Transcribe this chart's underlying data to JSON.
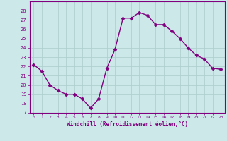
{
  "x": [
    0,
    1,
    2,
    3,
    4,
    5,
    6,
    7,
    8,
    9,
    10,
    11,
    12,
    13,
    14,
    15,
    16,
    17,
    18,
    19,
    20,
    21,
    22,
    23
  ],
  "y": [
    22.2,
    21.5,
    20.0,
    19.4,
    19.0,
    19.0,
    18.5,
    17.5,
    18.5,
    21.8,
    23.8,
    27.2,
    27.2,
    27.8,
    27.5,
    26.5,
    26.5,
    25.8,
    25.0,
    24.0,
    23.2,
    22.8,
    21.8,
    21.7
  ],
  "line_color": "#800080",
  "marker": "D",
  "markersize": 2.5,
  "linewidth": 1.0,
  "xlabel": "Windchill (Refroidissement éolien,°C)",
  "ylim": [
    17,
    29
  ],
  "xlim": [
    -0.5,
    23.5
  ],
  "yticks": [
    17,
    18,
    19,
    20,
    21,
    22,
    23,
    24,
    25,
    26,
    27,
    28
  ],
  "xticks": [
    0,
    1,
    2,
    3,
    4,
    5,
    6,
    7,
    8,
    9,
    10,
    11,
    12,
    13,
    14,
    15,
    16,
    17,
    18,
    19,
    20,
    21,
    22,
    23
  ],
  "background_color": "#cce8e8",
  "grid_color": "#b0d0d0",
  "tick_color": "#800080",
  "label_color": "#800080",
  "spine_color": "#800080"
}
